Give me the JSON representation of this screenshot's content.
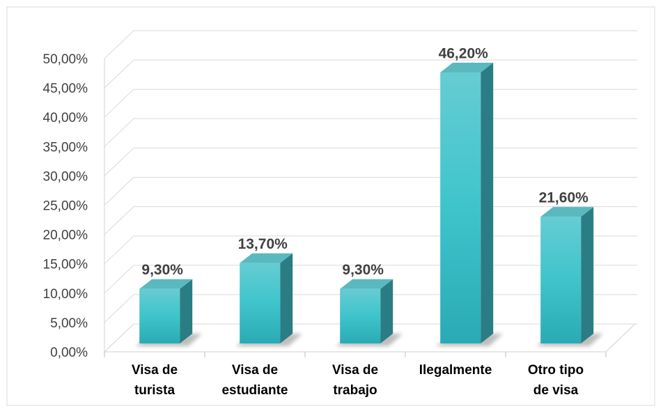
{
  "chart_data": {
    "type": "bar3d",
    "categories": [
      "Visa de\nturista",
      "Visa de\nestudiante",
      "Visa de\ntrabajo",
      "Ilegalmente",
      "Otro tipo\nde visa"
    ],
    "values": [
      9.3,
      13.7,
      9.3,
      46.2,
      21.6
    ],
    "value_labels": [
      "9,30%",
      "13,70%",
      "9,30%",
      "46,20%",
      "21,60%"
    ],
    "color": "#3cc0c8",
    "ylim": [
      0,
      50
    ],
    "yticks": [
      {
        "value": 0,
        "label": "0,00%"
      },
      {
        "value": 5,
        "label": "5,00%"
      },
      {
        "value": 10,
        "label": "10,00%"
      },
      {
        "value": 15,
        "label": "15,00%"
      },
      {
        "value": 20,
        "label": "20,00%"
      },
      {
        "value": 25,
        "label": "25,00%"
      },
      {
        "value": 30,
        "label": "30,00%"
      },
      {
        "value": 35,
        "label": "35,00%"
      },
      {
        "value": 40,
        "label": "40,00%"
      },
      {
        "value": 45,
        "label": "45,00%"
      },
      {
        "value": 50,
        "label": "50,00%"
      }
    ],
    "grid": true
  }
}
